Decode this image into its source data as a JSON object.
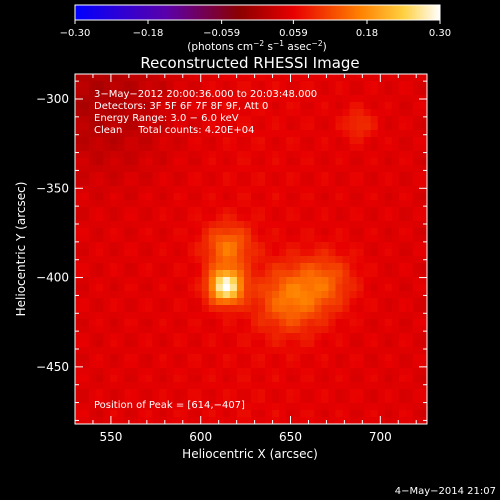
{
  "chart_data": {
    "type": "heatmap",
    "title": "Reconstructed RHESSI Image",
    "xlabel": "Heliocentric X (arcsec)",
    "ylabel": "Heliocentric Y (arcsec)",
    "xlim": [
      530,
      726
    ],
    "ylim": [
      -482,
      -286
    ],
    "x_ticks": [
      550,
      600,
      650,
      700
    ],
    "x_tick_labels": [
      "550",
      "600",
      "650",
      "700"
    ],
    "y_ticks": [
      -300,
      -350,
      -400,
      -450
    ],
    "y_tick_labels": [
      "−300",
      "−350",
      "−400",
      "−450"
    ],
    "colorbar": {
      "min": -0.3,
      "max": 0.3,
      "ticks": [
        -0.3,
        -0.18,
        -0.059,
        0.059,
        0.18,
        0.3
      ],
      "tick_labels": [
        "−0.30",
        "−0.18",
        "−0.059",
        "0.059",
        "0.18",
        "0.30"
      ],
      "label_prefix": "(photons cm",
      "label_sup1": "−2",
      "label_mid": " s",
      "label_sup2": "−1",
      "label_mid2": " asec",
      "label_sup3": "−2",
      "label_suffix": ")"
    },
    "annotations": [
      "3−May−2012 20:00:36.000 to 20:03:48.000",
      "Detectors: 3F 5F 6F 7F 8F 9F, Att 0",
      "Energy Range: 3.0 − 6.0 keV",
      "Clean     Total counts: 4.20E+04"
    ],
    "peak_label": "Position of Peak = [614,−407]",
    "peak": {
      "x": 614,
      "y": -407,
      "value": 0.3
    },
    "background_level": 0.06,
    "sources": [
      {
        "x": 614,
        "y": -405,
        "sigma": 6.5,
        "amp": 0.24
      },
      {
        "x": 615,
        "y": -383,
        "sigma": 9,
        "amp": 0.1
      },
      {
        "x": 650,
        "y": -412,
        "sigma": 13,
        "amp": 0.1
      },
      {
        "x": 670,
        "y": -402,
        "sigma": 11,
        "amp": 0.07
      },
      {
        "x": 688,
        "y": -314,
        "sigma": 6,
        "amp": 0.05
      }
    ],
    "colormap": "hot"
  },
  "footer": {
    "timestamp": "4−May−2014 21:07"
  }
}
